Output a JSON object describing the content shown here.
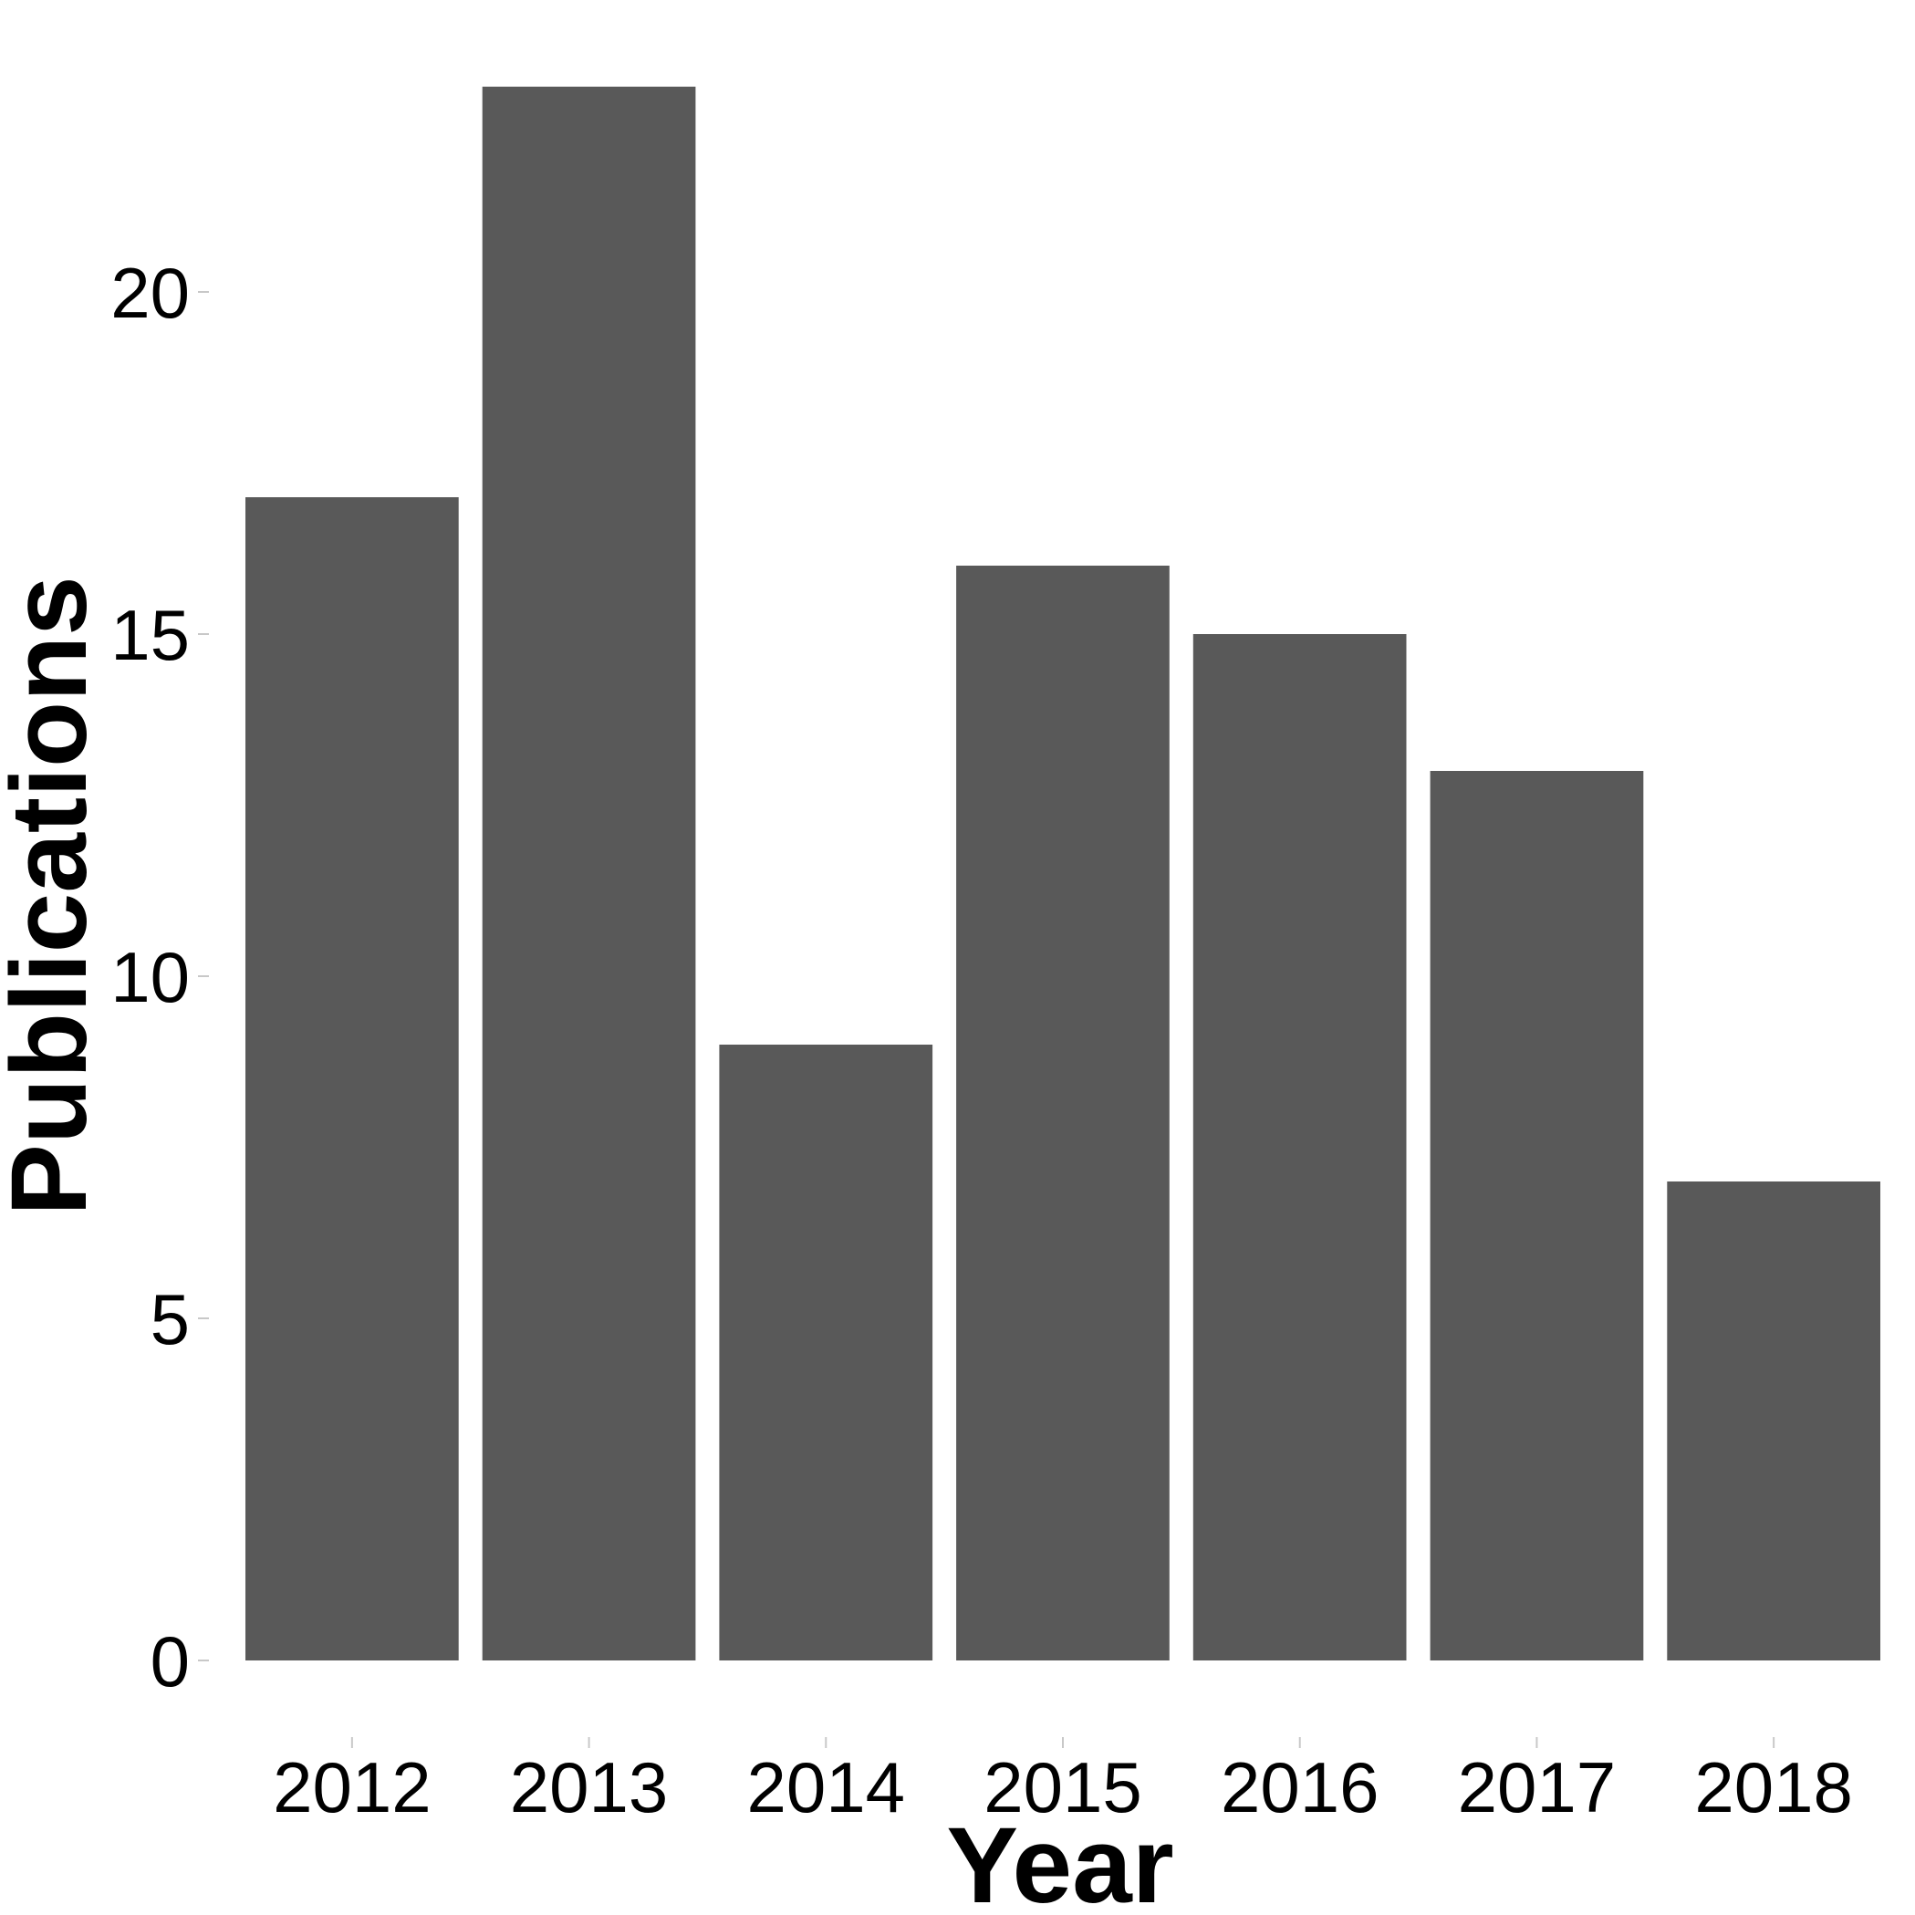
{
  "chart_data": {
    "type": "bar",
    "categories": [
      "2012",
      "2013",
      "2014",
      "2015",
      "2016",
      "2017",
      "2018"
    ],
    "values": [
      17,
      23,
      9,
      16,
      15,
      13,
      7
    ],
    "xlabel": "Year",
    "ylabel": "Publications",
    "yticks": [
      "0",
      "5",
      "10",
      "15",
      "20"
    ],
    "ylim": [
      0,
      23
    ],
    "grid": false,
    "legend": "none",
    "bar_color": "#595959",
    "background_color": "#ffffff"
  }
}
